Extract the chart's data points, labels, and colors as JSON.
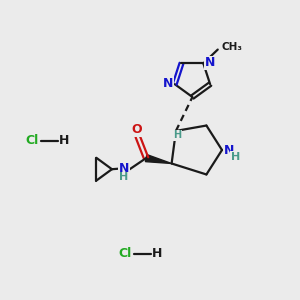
{
  "bg_color": "#ebebeb",
  "bond_color": "#1a1a1a",
  "N_color": "#1414cc",
  "O_color": "#cc1414",
  "H_color": "#4a9a8a",
  "Cl_color": "#22aa22",
  "figsize": [
    3.0,
    3.0
  ],
  "dpi": 100,
  "xlim": [
    0,
    10
  ],
  "ylim": [
    0,
    10
  ]
}
